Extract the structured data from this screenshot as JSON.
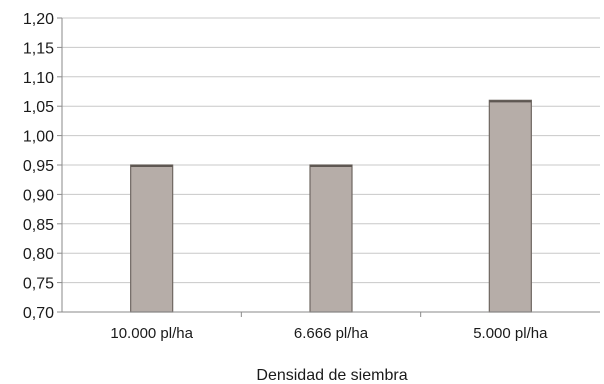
{
  "chart_data": {
    "type": "bar",
    "title": "",
    "xlabel": "Densidad de siembra",
    "ylabel": "",
    "categories": [
      "10.000 pl/ha",
      "6.666 pl/ha",
      "5.000 pl/ha"
    ],
    "values": [
      0.95,
      0.95,
      1.06
    ],
    "ylim": [
      0.7,
      1.2
    ],
    "yticks": [
      "0,70",
      "0,75",
      "0,80",
      "0,85",
      "0,90",
      "0,95",
      "1,00",
      "1,05",
      "1,10",
      "1,15",
      "1,20"
    ],
    "grid": true,
    "legend": "none",
    "colors": {
      "bar_fill": "#b6ada8",
      "bar_stroke": "#6f6762",
      "grid": "#c8c8c8",
      "axis": "#8a8a8a"
    }
  }
}
